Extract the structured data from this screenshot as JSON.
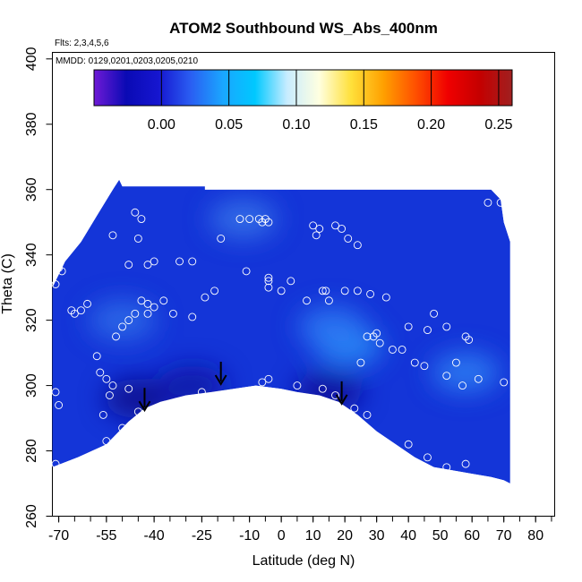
{
  "chart_data": {
    "type": "heatmap",
    "title": "ATOM2 Southbound WS_Abs_400nm",
    "flights_note": "Flts: 2,3,4,5,6",
    "dates_note": "MMDD: 0129,0201,0203,0205,0210",
    "xlabel": "Latitude (deg N)",
    "ylabel": "Theta (C)",
    "xlim": [
      -72,
      86
    ],
    "ylim": [
      260,
      402
    ],
    "x_ticks": [
      -70,
      -55,
      -40,
      -25,
      -10,
      0,
      10,
      20,
      30,
      40,
      50,
      60,
      70,
      80
    ],
    "y_ticks": [
      260,
      280,
      300,
      320,
      340,
      360,
      380,
      400
    ],
    "colorbar": {
      "range": [
        -0.05,
        0.26
      ],
      "ticks": [
        0.0,
        0.05,
        0.1,
        0.15,
        0.2,
        0.25
      ],
      "tick_labels": [
        "0.00",
        "0.05",
        "0.10",
        "0.15",
        "0.20",
        "0.25"
      ],
      "colors": [
        "#6f1ad6",
        "#0a0ab4",
        "#1616d0",
        "#2a5ef2",
        "#1aa6ff",
        "#00c8ff",
        "#c8ecff",
        "#ffffe0",
        "#ffe03a",
        "#ffa000",
        "#ff5000",
        "#f00000",
        "#c40000",
        "#a02020"
      ]
    },
    "field": {
      "base_color": "#1435d8",
      "upper_boundary": [
        [
          -72,
          330
        ],
        [
          -68,
          338
        ],
        [
          -63,
          344
        ],
        [
          -58,
          352
        ],
        [
          -53,
          360
        ],
        [
          -51,
          363
        ],
        [
          -50,
          361
        ],
        [
          -24,
          361
        ],
        [
          -24,
          360
        ],
        [
          66,
          360
        ],
        [
          69,
          357
        ],
        [
          70,
          350
        ],
        [
          72,
          344
        ],
        [
          72,
          270
        ]
      ],
      "lower_boundary": [
        [
          -72,
          275
        ],
        [
          -64,
          278
        ],
        [
          -55,
          282
        ],
        [
          -48,
          289
        ],
        [
          -43,
          293
        ],
        [
          -38,
          295
        ],
        [
          -30,
          297
        ],
        [
          -22,
          298
        ],
        [
          -15,
          299
        ],
        [
          -8,
          300
        ],
        [
          0,
          299
        ],
        [
          5,
          298
        ],
        [
          12,
          297
        ],
        [
          18,
          295
        ],
        [
          24,
          291
        ],
        [
          30,
          286
        ],
        [
          36,
          282
        ],
        [
          42,
          278
        ],
        [
          48,
          275
        ],
        [
          54,
          274
        ],
        [
          60,
          273
        ],
        [
          66,
          272
        ],
        [
          70,
          271
        ]
      ],
      "features": [
        {
          "lat": 21,
          "theta": 312,
          "value": 0.05,
          "color": "#2a8af6"
        },
        {
          "lat": 16,
          "theta": 318,
          "value": 0.04,
          "color": "#2e78f2"
        },
        {
          "lat": 58,
          "theta": 304,
          "value": 0.04,
          "color": "#2e7cf2"
        },
        {
          "lat": -50,
          "theta": 320,
          "value": 0.03,
          "color": "#2f6ae8"
        },
        {
          "lat": -12,
          "theta": 351,
          "value": 0.03,
          "color": "#3570e8"
        },
        {
          "lat": -45,
          "theta": 296,
          "value": -0.02,
          "color": "#0a0c8e"
        },
        {
          "lat": 15,
          "theta": 298,
          "value": -0.02,
          "color": "#0b0e9a"
        },
        {
          "lat": -28,
          "theta": 300,
          "value": -0.01,
          "color": "#0c16a6"
        }
      ]
    },
    "samples": [
      [
        -71,
        331
      ],
      [
        -70,
        336
      ],
      [
        -69,
        335
      ],
      [
        -71,
        298
      ],
      [
        -70,
        294
      ],
      [
        -71,
        276
      ],
      [
        -66,
        323
      ],
      [
        -65,
        322
      ],
      [
        -63,
        323
      ],
      [
        -61,
        325
      ],
      [
        -58,
        309
      ],
      [
        -57,
        304
      ],
      [
        -55,
        302
      ],
      [
        -54,
        297
      ],
      [
        -53,
        300
      ],
      [
        -56,
        291
      ],
      [
        -55,
        283
      ],
      [
        -53,
        282
      ],
      [
        -50,
        287
      ],
      [
        -48,
        299
      ],
      [
        -46,
        353
      ],
      [
        -44,
        351
      ],
      [
        -53,
        346
      ],
      [
        -45,
        345
      ],
      [
        -48,
        337
      ],
      [
        -42,
        337
      ],
      [
        -40,
        338
      ],
      [
        -52,
        315
      ],
      [
        -50,
        318
      ],
      [
        -48,
        320
      ],
      [
        -46,
        322
      ],
      [
        -44,
        326
      ],
      [
        -42,
        325
      ],
      [
        -40,
        324
      ],
      [
        -42,
        322
      ],
      [
        -37,
        326
      ],
      [
        -34,
        322
      ],
      [
        -32,
        338
      ],
      [
        -28,
        338
      ],
      [
        -28,
        321
      ],
      [
        -24,
        327
      ],
      [
        -21,
        329
      ],
      [
        -19,
        345
      ],
      [
        -13,
        351
      ],
      [
        -10,
        351
      ],
      [
        -7,
        351
      ],
      [
        -6,
        350
      ],
      [
        -5,
        351
      ],
      [
        -4,
        350
      ],
      [
        -11,
        335
      ],
      [
        -4,
        333
      ],
      [
        -4,
        332
      ],
      [
        -4,
        330
      ],
      [
        0,
        329
      ],
      [
        3,
        332
      ],
      [
        8,
        326
      ],
      [
        10,
        349
      ],
      [
        12,
        348
      ],
      [
        11,
        346
      ],
      [
        17,
        349
      ],
      [
        19,
        348
      ],
      [
        21,
        345
      ],
      [
        24,
        343
      ],
      [
        13,
        329
      ],
      [
        14,
        329
      ],
      [
        15,
        326
      ],
      [
        20,
        329
      ],
      [
        24,
        329
      ],
      [
        28,
        328
      ],
      [
        33,
        327
      ],
      [
        30,
        316
      ],
      [
        29,
        315
      ],
      [
        27,
        315
      ],
      [
        31,
        313
      ],
      [
        35,
        311
      ],
      [
        38,
        311
      ],
      [
        42,
        307
      ],
      [
        45,
        306
      ],
      [
        25,
        307
      ],
      [
        40,
        318
      ],
      [
        48,
        322
      ],
      [
        46,
        317
      ],
      [
        52,
        318
      ],
      [
        58,
        315
      ],
      [
        59,
        314
      ],
      [
        55,
        307
      ],
      [
        52,
        303
      ],
      [
        57,
        300
      ],
      [
        62,
        302
      ],
      [
        70,
        301
      ],
      [
        -45,
        292
      ],
      [
        -39,
        292
      ],
      [
        -33,
        295
      ],
      [
        -25,
        298
      ],
      [
        -6,
        301
      ],
      [
        -4,
        302
      ],
      [
        5,
        300
      ],
      [
        13,
        299
      ],
      [
        17,
        297
      ],
      [
        23,
        293
      ],
      [
        27,
        291
      ],
      [
        40,
        282
      ],
      [
        46,
        278
      ],
      [
        52,
        275
      ],
      [
        58,
        276
      ],
      [
        65,
        356
      ],
      [
        69,
        356
      ]
    ],
    "arrows": [
      {
        "lat": -43,
        "theta": 296
      },
      {
        "lat": -19,
        "theta": 304
      },
      {
        "lat": 19,
        "theta": 298
      }
    ]
  }
}
